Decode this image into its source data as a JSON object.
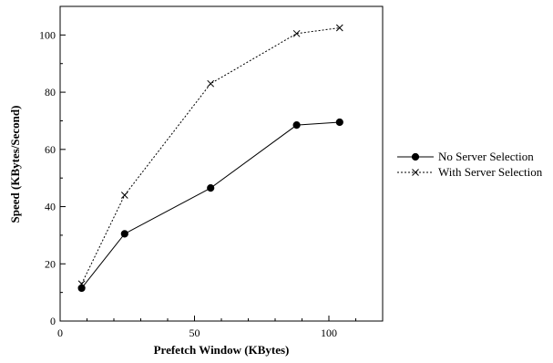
{
  "chart_data": {
    "type": "line",
    "xlabel": "Prefetch Window (KBytes)",
    "ylabel": "Speed (KBytes/Second)",
    "xlim": [
      0,
      120
    ],
    "ylim": [
      0,
      110
    ],
    "xticks": [
      0,
      50,
      100
    ],
    "yticks": [
      0,
      20,
      40,
      60,
      80,
      100
    ],
    "grid": false,
    "legend_position": "right",
    "series": [
      {
        "name": "No Server Selection",
        "style": "solid",
        "marker": "filled-circle",
        "color": "#000000",
        "x": [
          8,
          24,
          56,
          88,
          104
        ],
        "y": [
          11.5,
          30.5,
          46.5,
          68.5,
          69.5
        ]
      },
      {
        "name": "With Server Selection",
        "style": "dotted",
        "marker": "cross",
        "color": "#000000",
        "x": [
          8,
          24,
          56,
          88,
          104
        ],
        "y": [
          13,
          44,
          83,
          100.5,
          102.5
        ]
      }
    ]
  }
}
